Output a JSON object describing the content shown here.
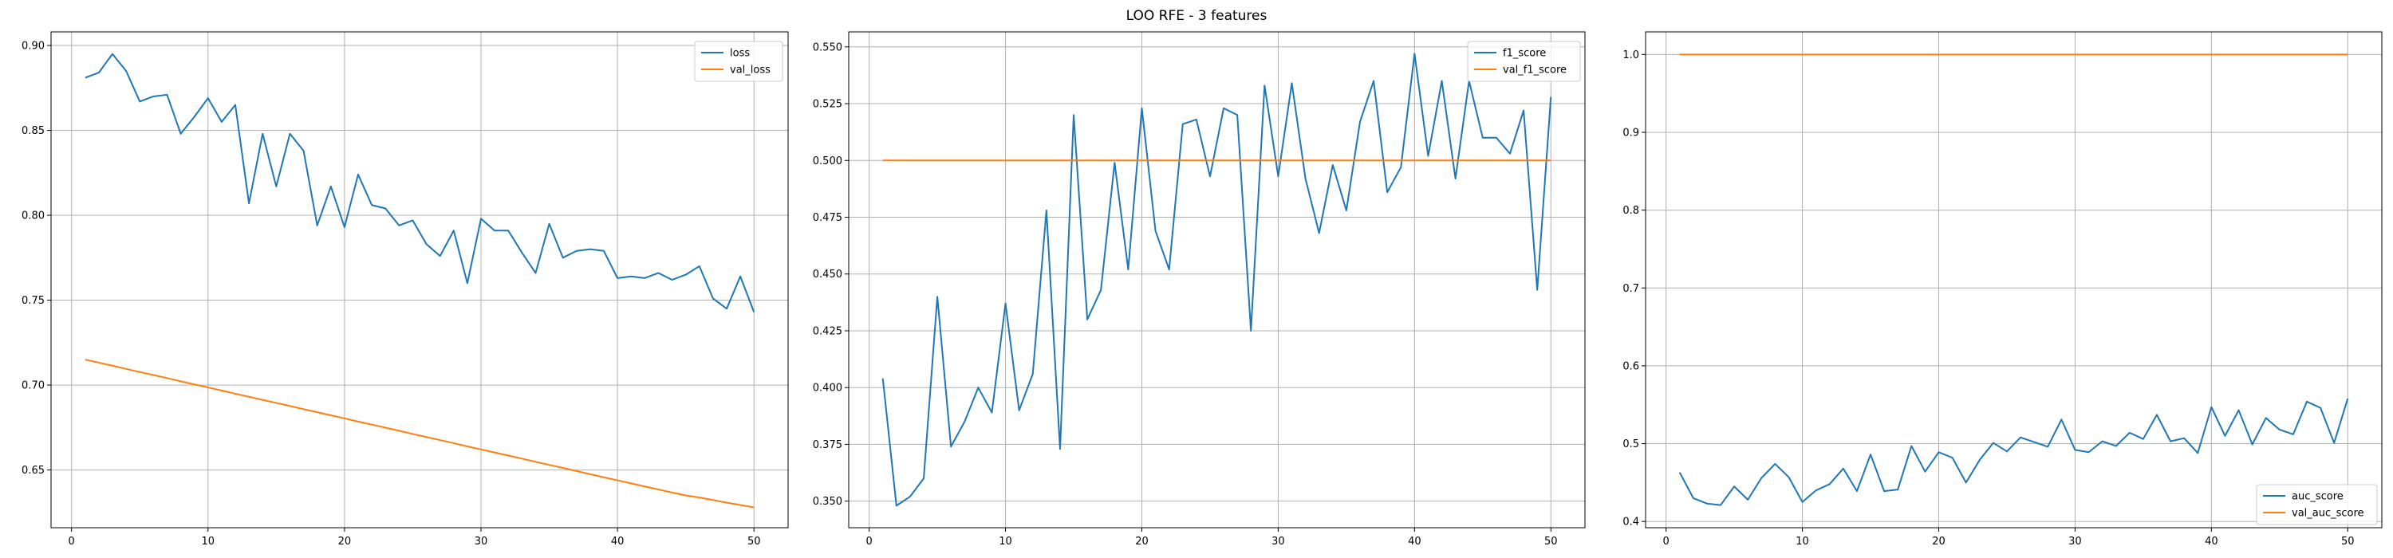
{
  "suptitle": "LOO RFE - 3 features",
  "colors": {
    "series1": "#1f77b4",
    "series2": "#ff7f0e",
    "grid": "#b0b0b0"
  },
  "chart_data": [
    {
      "type": "line",
      "grid": true,
      "legend_loc": "upper right",
      "xlim": [
        -1.5,
        52.5
      ],
      "ylim": [
        0.616,
        0.908
      ],
      "xticks": [
        0,
        10,
        20,
        30,
        40,
        50
      ],
      "yticks": [
        0.65,
        0.7,
        0.75,
        0.8,
        0.85,
        0.9
      ],
      "ytick_labels": [
        "0.65",
        "0.70",
        "0.75",
        "0.80",
        "0.85",
        "0.90"
      ],
      "x": [
        1,
        2,
        3,
        4,
        5,
        6,
        7,
        8,
        9,
        10,
        11,
        12,
        13,
        14,
        15,
        16,
        17,
        18,
        19,
        20,
        21,
        22,
        23,
        24,
        25,
        26,
        27,
        28,
        29,
        30,
        31,
        32,
        33,
        34,
        35,
        36,
        37,
        38,
        39,
        40,
        41,
        42,
        43,
        44,
        45,
        46,
        47,
        48,
        49,
        50
      ],
      "series": [
        {
          "name": "loss",
          "values": [
            0.881,
            0.884,
            0.895,
            0.885,
            0.867,
            0.87,
            0.871,
            0.848,
            0.858,
            0.869,
            0.855,
            0.865,
            0.807,
            0.848,
            0.817,
            0.848,
            0.838,
            0.794,
            0.817,
            0.793,
            0.824,
            0.806,
            0.804,
            0.794,
            0.797,
            0.783,
            0.776,
            0.791,
            0.76,
            0.798,
            0.791,
            0.791,
            0.778,
            0.766,
            0.795,
            0.775,
            0.779,
            0.78,
            0.779,
            0.763,
            0.764,
            0.763,
            0.766,
            0.762,
            0.765,
            0.77,
            0.751,
            0.745,
            0.764,
            0.743
          ]
        },
        {
          "name": "val_loss",
          "values": [
            0.715,
            0.7132,
            0.7114,
            0.7095,
            0.7077,
            0.7059,
            0.7041,
            0.7022,
            0.7004,
            0.6986,
            0.6968,
            0.6949,
            0.6931,
            0.6913,
            0.6895,
            0.6877,
            0.6858,
            0.684,
            0.6822,
            0.6804,
            0.6785,
            0.6767,
            0.6749,
            0.6731,
            0.6712,
            0.6694,
            0.6676,
            0.6658,
            0.6639,
            0.6621,
            0.6603,
            0.6585,
            0.6567,
            0.6548,
            0.653,
            0.6512,
            0.6494,
            0.6475,
            0.6457,
            0.6439,
            0.6421,
            0.6403,
            0.6385,
            0.6367,
            0.635,
            0.6338,
            0.6323,
            0.6308,
            0.6294,
            0.628
          ]
        }
      ]
    },
    {
      "type": "line",
      "grid": true,
      "legend_loc": "upper right",
      "xlim": [
        -1.5,
        52.5
      ],
      "ylim": [
        0.3383,
        0.5566
      ],
      "xticks": [
        0,
        10,
        20,
        30,
        40,
        50
      ],
      "yticks": [
        0.35,
        0.375,
        0.4,
        0.425,
        0.45,
        0.475,
        0.5,
        0.525,
        0.55
      ],
      "ytick_labels": [
        "0.350",
        "0.375",
        "0.400",
        "0.425",
        "0.450",
        "0.475",
        "0.500",
        "0.525",
        "0.550"
      ],
      "x": [
        1,
        2,
        3,
        4,
        5,
        6,
        7,
        8,
        9,
        10,
        11,
        12,
        13,
        14,
        15,
        16,
        17,
        18,
        19,
        20,
        21,
        22,
        23,
        24,
        25,
        26,
        27,
        28,
        29,
        30,
        31,
        32,
        33,
        34,
        35,
        36,
        37,
        38,
        39,
        40,
        41,
        42,
        43,
        44,
        45,
        46,
        47,
        48,
        49,
        50
      ],
      "series": [
        {
          "name": "f1_score",
          "values": [
            0.404,
            0.348,
            0.352,
            0.36,
            0.44,
            0.374,
            0.385,
            0.4,
            0.389,
            0.437,
            0.39,
            0.406,
            0.478,
            0.373,
            0.52,
            0.43,
            0.443,
            0.499,
            0.452,
            0.523,
            0.469,
            0.452,
            0.516,
            0.518,
            0.493,
            0.523,
            0.52,
            0.425,
            0.533,
            0.493,
            0.534,
            0.492,
            0.468,
            0.498,
            0.478,
            0.517,
            0.535,
            0.486,
            0.497,
            0.547,
            0.502,
            0.535,
            0.492,
            0.535,
            0.51,
            0.51,
            0.503,
            0.522,
            0.443,
            0.528
          ]
        },
        {
          "name": "val_f1_score",
          "values": [
            0.5,
            0.5,
            0.5,
            0.5,
            0.5,
            0.5,
            0.5,
            0.5,
            0.5,
            0.5,
            0.5,
            0.5,
            0.5,
            0.5,
            0.5,
            0.5,
            0.5,
            0.5,
            0.5,
            0.5,
            0.5,
            0.5,
            0.5,
            0.5,
            0.5,
            0.5,
            0.5,
            0.5,
            0.5,
            0.5,
            0.5,
            0.5,
            0.5,
            0.5,
            0.5,
            0.5,
            0.5,
            0.5,
            0.5,
            0.5,
            0.5,
            0.5,
            0.5,
            0.5,
            0.5,
            0.5,
            0.5,
            0.5,
            0.5,
            0.5
          ]
        }
      ]
    },
    {
      "type": "line",
      "grid": true,
      "legend_loc": "lower right",
      "xlim": [
        -1.5,
        52.5
      ],
      "ylim": [
        0.392,
        1.029
      ],
      "xticks": [
        0,
        10,
        20,
        30,
        40,
        50
      ],
      "yticks": [
        0.4,
        0.5,
        0.6,
        0.7,
        0.8,
        0.9,
        1.0
      ],
      "ytick_labels": [
        "0.4",
        "0.5",
        "0.6",
        "0.7",
        "0.8",
        "0.9",
        "1.0"
      ],
      "x": [
        1,
        2,
        3,
        4,
        5,
        6,
        7,
        8,
        9,
        10,
        11,
        12,
        13,
        14,
        15,
        16,
        17,
        18,
        19,
        20,
        21,
        22,
        23,
        24,
        25,
        26,
        27,
        28,
        29,
        30,
        31,
        32,
        33,
        34,
        35,
        36,
        37,
        38,
        39,
        40,
        41,
        42,
        43,
        44,
        45,
        46,
        47,
        48,
        49,
        50
      ],
      "series": [
        {
          "name": "auc_score",
          "values": [
            0.463,
            0.43,
            0.423,
            0.421,
            0.445,
            0.428,
            0.456,
            0.474,
            0.457,
            0.425,
            0.44,
            0.448,
            0.468,
            0.439,
            0.486,
            0.439,
            0.441,
            0.497,
            0.464,
            0.489,
            0.482,
            0.45,
            0.479,
            0.501,
            0.49,
            0.508,
            0.502,
            0.496,
            0.531,
            0.492,
            0.489,
            0.503,
            0.497,
            0.514,
            0.506,
            0.537,
            0.503,
            0.507,
            0.488,
            0.547,
            0.51,
            0.543,
            0.499,
            0.533,
            0.518,
            0.512,
            0.554,
            0.546,
            0.501,
            0.558
          ]
        },
        {
          "name": "val_auc_score",
          "values": [
            1,
            1,
            1,
            1,
            1,
            1,
            1,
            1,
            1,
            1,
            1,
            1,
            1,
            1,
            1,
            1,
            1,
            1,
            1,
            1,
            1,
            1,
            1,
            1,
            1,
            1,
            1,
            1,
            1,
            1,
            1,
            1,
            1,
            1,
            1,
            1,
            1,
            1,
            1,
            1,
            1,
            1,
            1,
            1,
            1,
            1,
            1,
            1,
            1,
            1
          ]
        }
      ]
    }
  ]
}
